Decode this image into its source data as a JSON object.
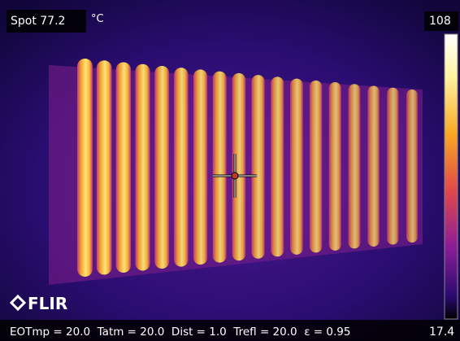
{
  "spot_label": "Spot 77.2",
  "unit": "°C",
  "scale": {
    "max": "108",
    "min": "17.4"
  },
  "logo": "FLIR",
  "parameters": "EOTmp = 20.0  Tatm = 20.0  Dist = 1.0  Trefl = 20.0  ε = 0.95"
}
